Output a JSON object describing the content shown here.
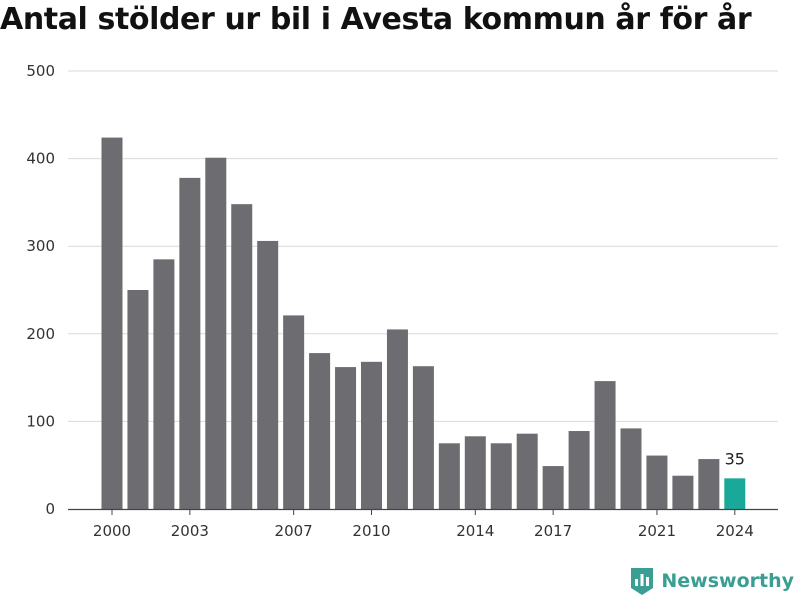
{
  "chart_data": {
    "type": "bar",
    "title": "Antal stölder ur bil i Avesta kommun år för år",
    "xlabel": "",
    "ylabel": "",
    "ylim": [
      0,
      500
    ],
    "yticks": [
      0,
      100,
      200,
      300,
      400,
      500
    ],
    "xtick_labels": [
      "2000",
      "2003",
      "2007",
      "2010",
      "2014",
      "2017",
      "2021",
      "2024"
    ],
    "grid": true,
    "categories": [
      "2000",
      "2001",
      "2002",
      "2003",
      "2004",
      "2005",
      "2006",
      "2007",
      "2008",
      "2009",
      "2010",
      "2011",
      "2012",
      "2013",
      "2014",
      "2015",
      "2016",
      "2017",
      "2018",
      "2019",
      "2020",
      "2021",
      "2022",
      "2023",
      "2024"
    ],
    "values": [
      424,
      250,
      285,
      378,
      401,
      348,
      306,
      221,
      178,
      162,
      168,
      205,
      163,
      75,
      83,
      75,
      86,
      49,
      89,
      146,
      92,
      61,
      38,
      57,
      35
    ],
    "highlight": {
      "category": "2024",
      "label": "35"
    },
    "colors": {
      "bar": "#6d6c71",
      "highlight": "#1aa89a",
      "grid": "#d9d9d9",
      "axis": "#444444"
    }
  },
  "brand": {
    "name": "Newsworthy",
    "icon": "bar-chart-shield-icon",
    "color": "#3a9e93"
  }
}
